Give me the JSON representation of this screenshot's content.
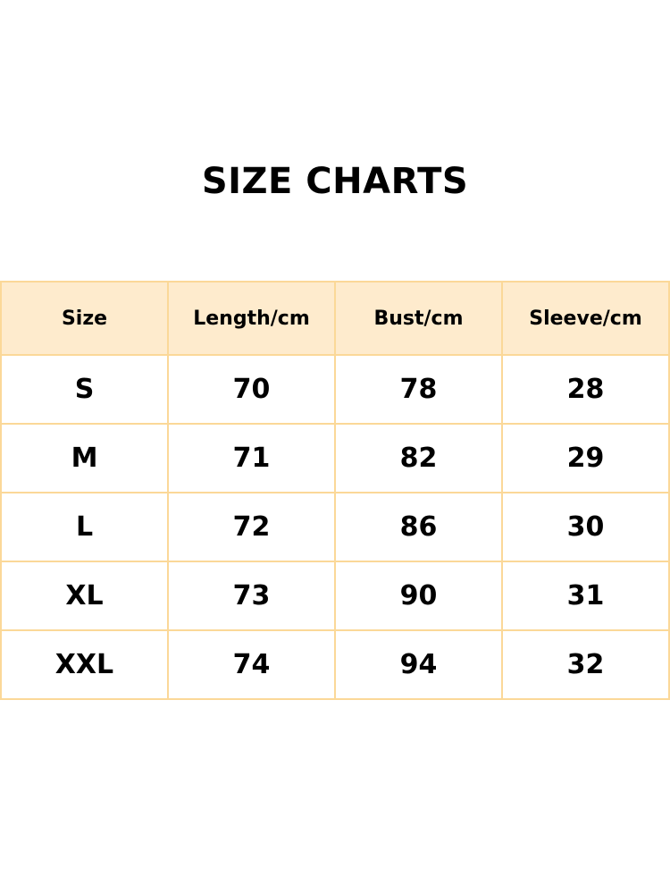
{
  "title": "SIZE CHARTS",
  "colors": {
    "header_bg": "#feebcd",
    "border": "#fbd898"
  },
  "table": {
    "headers": [
      "Size",
      "Length/cm",
      "Bust/cm",
      "Sleeve/cm"
    ],
    "rows": [
      [
        "S",
        "70",
        "78",
        "28"
      ],
      [
        "M",
        "71",
        "82",
        "29"
      ],
      [
        "L",
        "72",
        "86",
        "30"
      ],
      [
        "XL",
        "73",
        "90",
        "31"
      ],
      [
        "XXL",
        "74",
        "94",
        "32"
      ]
    ]
  }
}
